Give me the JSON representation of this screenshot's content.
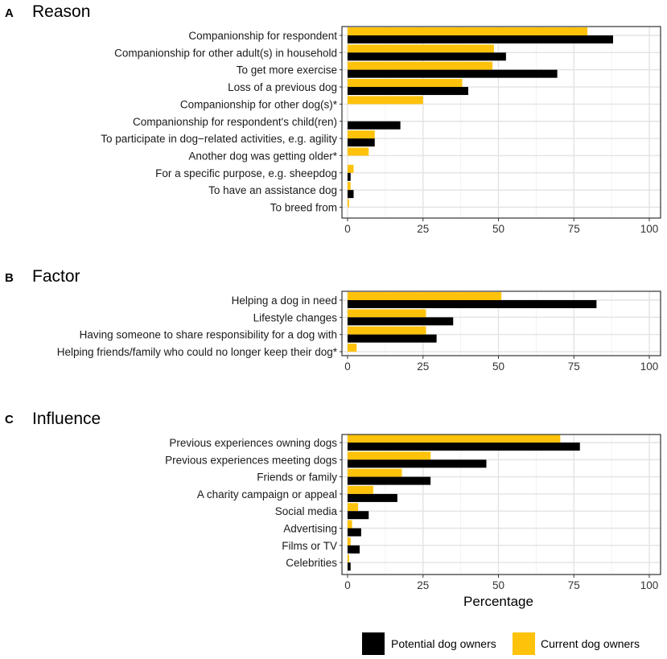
{
  "chart_data": [
    {
      "type": "bar",
      "orientation": "horizontal",
      "panel_letter": "A",
      "title": "Reason",
      "xlim": [
        0,
        100
      ],
      "xticks": [
        "0",
        "25",
        "50",
        "75",
        "100"
      ],
      "xlabel": "",
      "grid": true,
      "categories": [
        "Companionship for respondent",
        "Companionship for other adult(s) in household",
        "To get more exercise",
        "Loss of a previous dog",
        "Companionship for other dog(s)*",
        "Companionship for respondent's child(ren)",
        "To participate in dog−related activities, e.g. agility",
        "Another dog was getting older*",
        "For a specific purpose, e.g. sheepdog",
        "To have an assistance dog",
        "To breed from"
      ],
      "series": [
        {
          "name": "Current dog owners",
          "color": "#FFC20A",
          "values": [
            79.5,
            48.5,
            48,
            38,
            25,
            0,
            9,
            7,
            2,
            1,
            0.5
          ]
        },
        {
          "name": "Potential dog owners",
          "color": "#000000",
          "values": [
            88,
            52.5,
            69.5,
            40,
            0,
            17.5,
            9,
            0,
            1,
            2,
            0
          ]
        }
      ]
    },
    {
      "type": "bar",
      "orientation": "horizontal",
      "panel_letter": "B",
      "title": "Factor",
      "xlim": [
        0,
        100
      ],
      "xticks": [
        "0",
        "25",
        "50",
        "75",
        "100"
      ],
      "xlabel": "",
      "grid": true,
      "categories": [
        "Helping a dog in need",
        "Lifestyle changes",
        "Having someone to share responsibility for a dog with",
        "Helping friends/family who could no longer keep their dog*"
      ],
      "series": [
        {
          "name": "Current dog owners",
          "color": "#FFC20A",
          "values": [
            51,
            26,
            26,
            3
          ]
        },
        {
          "name": "Potential dog owners",
          "color": "#000000",
          "values": [
            82.5,
            35,
            29.5,
            0
          ]
        }
      ]
    },
    {
      "type": "bar",
      "orientation": "horizontal",
      "panel_letter": "C",
      "title": "Influence",
      "xlim": [
        0,
        100
      ],
      "xticks": [
        "0",
        "25",
        "50",
        "75",
        "100"
      ],
      "xlabel": "Percentage",
      "grid": true,
      "categories": [
        "Previous experiences owning dogs",
        "Previous experiences meeting dogs",
        "Friends or family",
        "A charity campaign or appeal",
        "Social media",
        "Advertising",
        "Films or TV",
        "Celebrities"
      ],
      "series": [
        {
          "name": "Current dog owners",
          "color": "#FFC20A",
          "values": [
            70.5,
            27.5,
            18,
            8.5,
            3.5,
            1.5,
            1,
            0.5
          ]
        },
        {
          "name": "Potential dog owners",
          "color": "#000000",
          "values": [
            77,
            46,
            27.5,
            16.5,
            7,
            4.5,
            4,
            1
          ]
        }
      ]
    }
  ],
  "legend": {
    "position": "bottom-right",
    "items": [
      {
        "label": "Potential dog owners",
        "color": "#000000"
      },
      {
        "label": "Current dog owners",
        "color": "#FFC20A"
      }
    ]
  }
}
